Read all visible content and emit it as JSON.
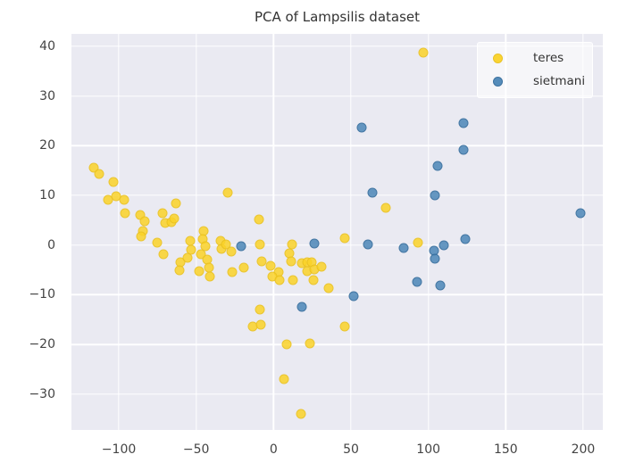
{
  "title_text": "PCA of Lampsilis dataset",
  "colors": {
    "page_bg": "#FFFFFF",
    "plot_bg": "#EAEAF2",
    "grid": "#FFFFFF",
    "tick_text": "#444444",
    "title_text": "#333333",
    "teres": "#FAD228",
    "sietmani": "#4682B4"
  },
  "chart_data": {
    "type": "scatter",
    "title": "PCA of Lampsilis dataset",
    "xlabel": "",
    "ylabel": "",
    "grid": true,
    "legend_position": "upper right",
    "xlim": [
      -130.6,
      212.7
    ],
    "ylim": [
      -37.2,
      42.5
    ],
    "xticks": [
      {
        "value": -100,
        "label": "−100"
      },
      {
        "value": -50,
        "label": "−50"
      },
      {
        "value": 0,
        "label": "0"
      },
      {
        "value": 50,
        "label": "50"
      },
      {
        "value": 100,
        "label": "100"
      },
      {
        "value": 150,
        "label": "150"
      },
      {
        "value": 200,
        "label": "200"
      }
    ],
    "yticks": [
      {
        "value": 40,
        "label": "40"
      },
      {
        "value": 30,
        "label": "30"
      },
      {
        "value": 20,
        "label": "20"
      },
      {
        "value": 10,
        "label": "10"
      },
      {
        "value": 0,
        "label": "0"
      },
      {
        "value": -10,
        "label": "−10"
      },
      {
        "value": -20,
        "label": "−20"
      },
      {
        "value": -30,
        "label": "−30"
      }
    ],
    "series": [
      {
        "name": "teres",
        "color": "#FAD228",
        "points": [
          [
            -116,
            15.6
          ],
          [
            -113,
            14.4
          ],
          [
            -103.5,
            12.7
          ],
          [
            -107,
            9.2
          ],
          [
            -102,
            9.9
          ],
          [
            -96.5,
            9.1
          ],
          [
            -96,
            6.4
          ],
          [
            -86,
            6.0
          ],
          [
            -83,
            4.8
          ],
          [
            -84.5,
            2.9
          ],
          [
            -85.5,
            1.7
          ],
          [
            -72,
            6.5
          ],
          [
            -70,
            4.5
          ],
          [
            -66,
            4.7
          ],
          [
            -64,
            5.4
          ],
          [
            -63,
            8.4
          ],
          [
            -75,
            0.5
          ],
          [
            -71,
            -1.9
          ],
          [
            -60,
            -3.5
          ],
          [
            -61,
            -5.0
          ],
          [
            -55.5,
            -2.5
          ],
          [
            -54,
            0.8
          ],
          [
            -53.5,
            -1.0
          ],
          [
            -48,
            -5.3
          ],
          [
            -45,
            2.9
          ],
          [
            -46,
            1.3
          ],
          [
            -44,
            -0.2
          ],
          [
            -47,
            -1.8
          ],
          [
            -43,
            -3.0
          ],
          [
            -42,
            -4.5
          ],
          [
            -41,
            -6.3
          ],
          [
            -34,
            0.8
          ],
          [
            -33.5,
            -0.8
          ],
          [
            -30.5,
            0.2
          ],
          [
            -27.5,
            -1.3
          ],
          [
            -27,
            -5.4
          ],
          [
            -29.5,
            10.5
          ],
          [
            -19,
            -4.6
          ],
          [
            -9.5,
            5.2
          ],
          [
            -9,
            0.1
          ],
          [
            -7.5,
            -3.2
          ],
          [
            -2,
            -4.2
          ],
          [
            -9,
            -12.9
          ],
          [
            -13.5,
            -16.3
          ],
          [
            -8,
            -16.1
          ],
          [
            12,
            0.2
          ],
          [
            10,
            -1.6
          ],
          [
            11.5,
            -3.3
          ],
          [
            3.5,
            -5.4
          ],
          [
            -0.5,
            -6.4
          ],
          [
            4,
            -7.1
          ],
          [
            12.5,
            -7.1
          ],
          [
            18.5,
            -3.6
          ],
          [
            21.5,
            -3.4
          ],
          [
            24.5,
            -3.4
          ],
          [
            21.5,
            -5.3
          ],
          [
            26.5,
            -4.9
          ],
          [
            31,
            -4.4
          ],
          [
            25.5,
            -7.1
          ],
          [
            35.5,
            -8.6
          ],
          [
            46,
            1.4
          ],
          [
            46,
            -16.4
          ],
          [
            8.5,
            -19.9
          ],
          [
            23.5,
            -19.7
          ],
          [
            7,
            -27.0
          ],
          [
            17.5,
            -34.0
          ],
          [
            72.5,
            7.5
          ],
          [
            93.5,
            0.5
          ],
          [
            96.5,
            38.8
          ]
        ]
      },
      {
        "name": "sietmani",
        "color": "#4682B4",
        "points": [
          [
            57,
            23.6
          ],
          [
            122.5,
            24.5
          ],
          [
            122.5,
            19.1
          ],
          [
            106,
            16.0
          ],
          [
            64,
            10.5
          ],
          [
            104.5,
            10.0
          ],
          [
            198.5,
            6.5
          ],
          [
            -20.7,
            -0.3
          ],
          [
            26.5,
            0.3
          ],
          [
            61,
            0.2
          ],
          [
            84,
            -0.5
          ],
          [
            103.5,
            -1.1
          ],
          [
            104,
            -2.8
          ],
          [
            110,
            0.0
          ],
          [
            124,
            1.3
          ],
          [
            92.5,
            -7.4
          ],
          [
            107.5,
            -8.2
          ],
          [
            52,
            -10.3
          ],
          [
            18.5,
            -12.4
          ]
        ]
      }
    ]
  },
  "legend": {
    "items": [
      {
        "label": "teres"
      },
      {
        "label": "sietmani"
      }
    ]
  }
}
